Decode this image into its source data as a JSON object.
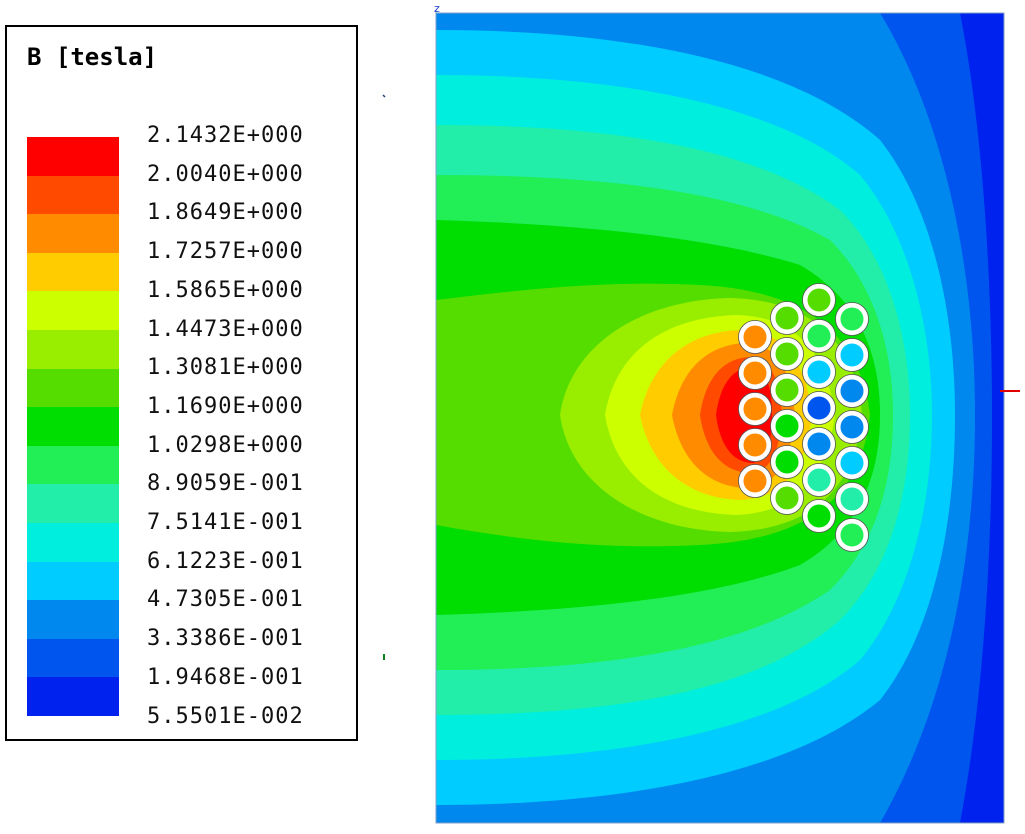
{
  "legend": {
    "title": "B [tesla]",
    "values": [
      "2.1432E+000",
      "2.0040E+000",
      "1.8649E+000",
      "1.7257E+000",
      "1.5865E+000",
      "1.4473E+000",
      "1.3081E+000",
      "1.1690E+000",
      "1.0298E+000",
      "8.9059E-001",
      "7.5141E-001",
      "6.1223E-001",
      "4.7305E-001",
      "3.3386E-001",
      "1.9468E-001",
      "5.5501E-002"
    ],
    "band_colors": [
      "#ff0000",
      "#ff4a00",
      "#ff8c00",
      "#ffcc00",
      "#ccff00",
      "#99ee00",
      "#55dd00",
      "#00dd00",
      "#22ee55",
      "#22eeaa",
      "#00eedd",
      "#00ccff",
      "#0088ee",
      "#0055ee",
      "#0022ee"
    ]
  },
  "axis_marker": "z"
}
